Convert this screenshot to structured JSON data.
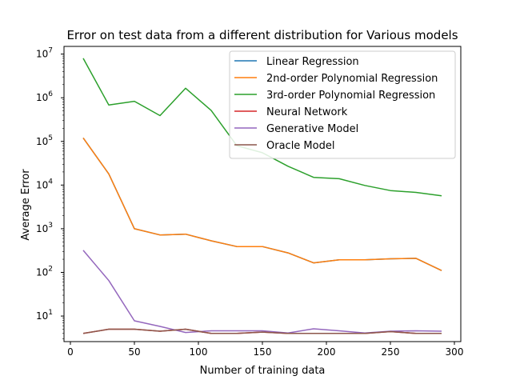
{
  "chart_data": {
    "type": "line",
    "title": "Error on test data from a different distribution for Various models",
    "xlabel": "Number of training data",
    "ylabel": "Average Error",
    "xlim": [
      -5,
      305
    ],
    "ylim": [
      2.6,
      15000000
    ],
    "yscale": "log",
    "grid": false,
    "legend_position": "top-right",
    "xticks": [
      0,
      50,
      100,
      150,
      200,
      250,
      300
    ],
    "yticks": [
      {
        "value": 10,
        "base": "10",
        "exp": "1"
      },
      {
        "value": 100,
        "base": "10",
        "exp": "2"
      },
      {
        "value": 1000,
        "base": "10",
        "exp": "3"
      },
      {
        "value": 10000,
        "base": "10",
        "exp": "4"
      },
      {
        "value": 100000,
        "base": "10",
        "exp": "5"
      },
      {
        "value": 1000000,
        "base": "10",
        "exp": "6"
      },
      {
        "value": 10000000,
        "base": "10",
        "exp": "7"
      }
    ],
    "x": [
      10,
      30,
      50,
      70,
      90,
      110,
      130,
      150,
      170,
      190,
      210,
      230,
      250,
      270,
      290
    ],
    "series": [
      {
        "name": "Linear Regression",
        "color": "#1f77b4",
        "values": [
          120000,
          18000,
          1000,
          720,
          750,
          530,
          390,
          390,
          280,
          165,
          195,
          195,
          205,
          210,
          110
        ]
      },
      {
        "name": "2nd-order Polynomial Regression",
        "color": "#ff7f0e",
        "values": [
          120000,
          18000,
          1000,
          720,
          750,
          530,
          390,
          390,
          280,
          165,
          195,
          195,
          205,
          210,
          110
        ]
      },
      {
        "name": "3rd-order Polynomial Regression",
        "color": "#2ca02c",
        "values": [
          8000000,
          680000,
          830000,
          390000,
          1650000,
          510000,
          80000,
          55000,
          27000,
          15000,
          14000,
          9800,
          7500,
          6800,
          5700
        ]
      },
      {
        "name": "Neural Network",
        "color": "#d62728",
        "values": [
          4.0,
          5.0,
          5.0,
          4.5,
          5.0,
          4.0,
          4.0,
          4.3,
          4.0,
          4.0,
          4.0,
          4.0,
          4.4,
          4.0,
          4.0
        ]
      },
      {
        "name": "Generative Model",
        "color": "#9467bd",
        "values": [
          320,
          65,
          7.8,
          5.8,
          4.2,
          4.6,
          4.6,
          4.6,
          4.1,
          5.1,
          4.6,
          4.1,
          4.5,
          4.6,
          4.5
        ]
      },
      {
        "name": "Oracle Model",
        "color": "#8c564b",
        "values": [
          4.0,
          5.0,
          5.0,
          4.5,
          5.0,
          4.0,
          4.0,
          4.3,
          4.0,
          4.0,
          4.0,
          4.0,
          4.4,
          4.0,
          4.0
        ]
      }
    ]
  }
}
